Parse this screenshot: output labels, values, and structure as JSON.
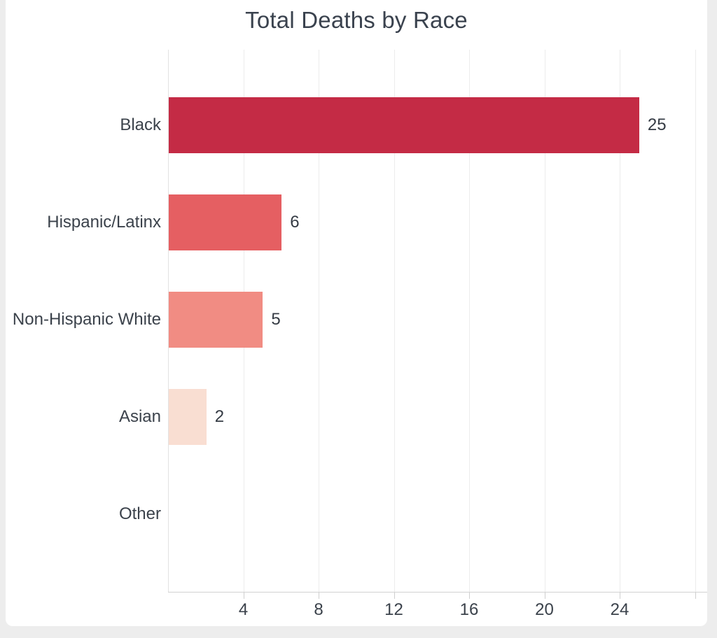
{
  "page": {
    "background_color": "#ededed",
    "card_background_color": "#ffffff"
  },
  "chart_data": {
    "type": "bar",
    "orientation": "horizontal",
    "title": "Total Deaths by Race",
    "categories": [
      "Black",
      "Hispanic/Latinx",
      "Non-Hispanic White",
      "Asian",
      "Other"
    ],
    "values": [
      25,
      6,
      5,
      2,
      0
    ],
    "value_labels": [
      "25",
      "6",
      "5",
      "2",
      ""
    ],
    "bar_colors": [
      "#c42b45",
      "#e55f62",
      "#f18c83",
      "#f9ded2",
      "#f9ded2"
    ],
    "xlabel": "",
    "ylabel": "",
    "xlim": [
      0,
      28.6
    ],
    "xticks": [
      4,
      8,
      12,
      16,
      20,
      24
    ],
    "gridlines": [
      4,
      8,
      12,
      16,
      20,
      24,
      28
    ],
    "grid": true,
    "legend": false,
    "title_color": "#3a424e",
    "label_color": "#3b424b",
    "tick_color": "#3b424b",
    "gridline_color": "#ececec",
    "axis_line_color": "#d2d2d2"
  }
}
